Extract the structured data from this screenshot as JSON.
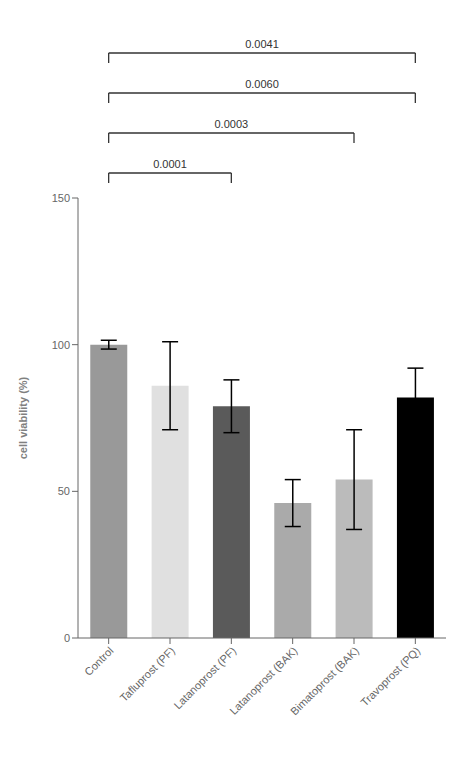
{
  "chart_data": {
    "type": "bar",
    "categories": [
      "Control",
      "Tafluprost (PF)",
      "Latanoprost (PF)",
      "Latanoprost (BAK)",
      "Bimatoprost (BAK)",
      "Travoprost (PQ)"
    ],
    "values": [
      100,
      86,
      79,
      46,
      54,
      82
    ],
    "errors": [
      1.5,
      15,
      9,
      8,
      17,
      10
    ],
    "colors": [
      "#999999",
      "#e0e0e0",
      "#5a5a5a",
      "#aaaaaa",
      "#bbbbbb",
      "#000000"
    ],
    "ylabel": "cell viability (%)",
    "ylim": [
      0,
      150
    ],
    "yticks": [
      0,
      50,
      100,
      150
    ],
    "grid": false,
    "annotations": [
      {
        "text": "0.0001",
        "x1": "Control",
        "x2": "Latanoprost (PF)"
      },
      {
        "text": "0.0003",
        "x1": "Control",
        "x2": "Bimatoprost (BAK)"
      },
      {
        "text": "0.0060",
        "x1": "Control",
        "x2": "Travoprost (PQ)"
      },
      {
        "text": "0.0041",
        "x1": "Control",
        "x2": "Travoprost (PQ)"
      }
    ]
  }
}
